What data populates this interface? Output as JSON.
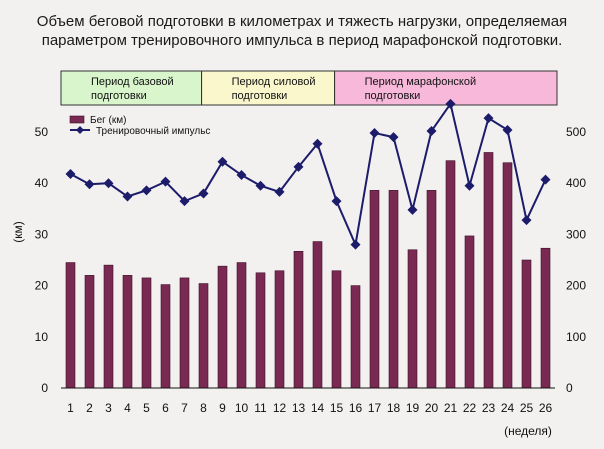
{
  "title": {
    "line1": "Объем беговой подготовки в километрах и тяжесть нагрузки, определяемая",
    "line2": "параметром тренировочного импульса в период марафонской подготовки."
  },
  "colors": {
    "bar": "#7a2a52",
    "line": "#1c1c6a",
    "period_base": "#d9f5cc",
    "period_strength": "#fbf7cc",
    "period_marathon": "#f7b8d9",
    "period_border": "#333333"
  },
  "periods": [
    {
      "label1": "Период базовой",
      "label2": "подготовки",
      "from_week": 1,
      "to_week": 8
    },
    {
      "label1": "Период силовой",
      "label2": "подготовки",
      "from_week": 8,
      "to_week": 15
    },
    {
      "label1": "Период марафонской",
      "label2": "подготовки",
      "from_week": 15,
      "to_week": 26
    }
  ],
  "chart_data": {
    "type": "bar",
    "categories": [
      "1",
      "2",
      "3",
      "4",
      "5",
      "6",
      "7",
      "8",
      "9",
      "10",
      "11",
      "12",
      "13",
      "14",
      "15",
      "16",
      "17",
      "18",
      "19",
      "20",
      "21",
      "22",
      "23",
      "24",
      "25",
      "26"
    ],
    "series": [
      {
        "name": "Бег (км)",
        "type": "bar",
        "axis": "left",
        "values": [
          24.5,
          22,
          24,
          22,
          21.5,
          20.2,
          21.5,
          20.4,
          23.8,
          24.5,
          22.5,
          22.9,
          26.7,
          28.6,
          22.9,
          20,
          38.6,
          38.6,
          27,
          38.6,
          44.4,
          29.7,
          46,
          44,
          25,
          27.3
        ]
      },
      {
        "name": "Тренировочный импульс",
        "type": "line",
        "axis": "right",
        "values": [
          418,
          398,
          400,
          374,
          386,
          403,
          365,
          380,
          442,
          416,
          395,
          383,
          432,
          477,
          365,
          280,
          498,
          490,
          348,
          502,
          555,
          395,
          527,
          504,
          328,
          407
        ]
      }
    ],
    "ylabel": "(км)",
    "xlabel": "(неделя)",
    "ylim": [
      0,
      50
    ],
    "y2lim": [
      0,
      500
    ],
    "yticks": [
      "0",
      "10",
      "20",
      "30",
      "40",
      "50"
    ],
    "y2ticks": [
      "0",
      "100",
      "200",
      "300",
      "400",
      "500"
    ],
    "grid": false,
    "legend_position": "top-left"
  }
}
